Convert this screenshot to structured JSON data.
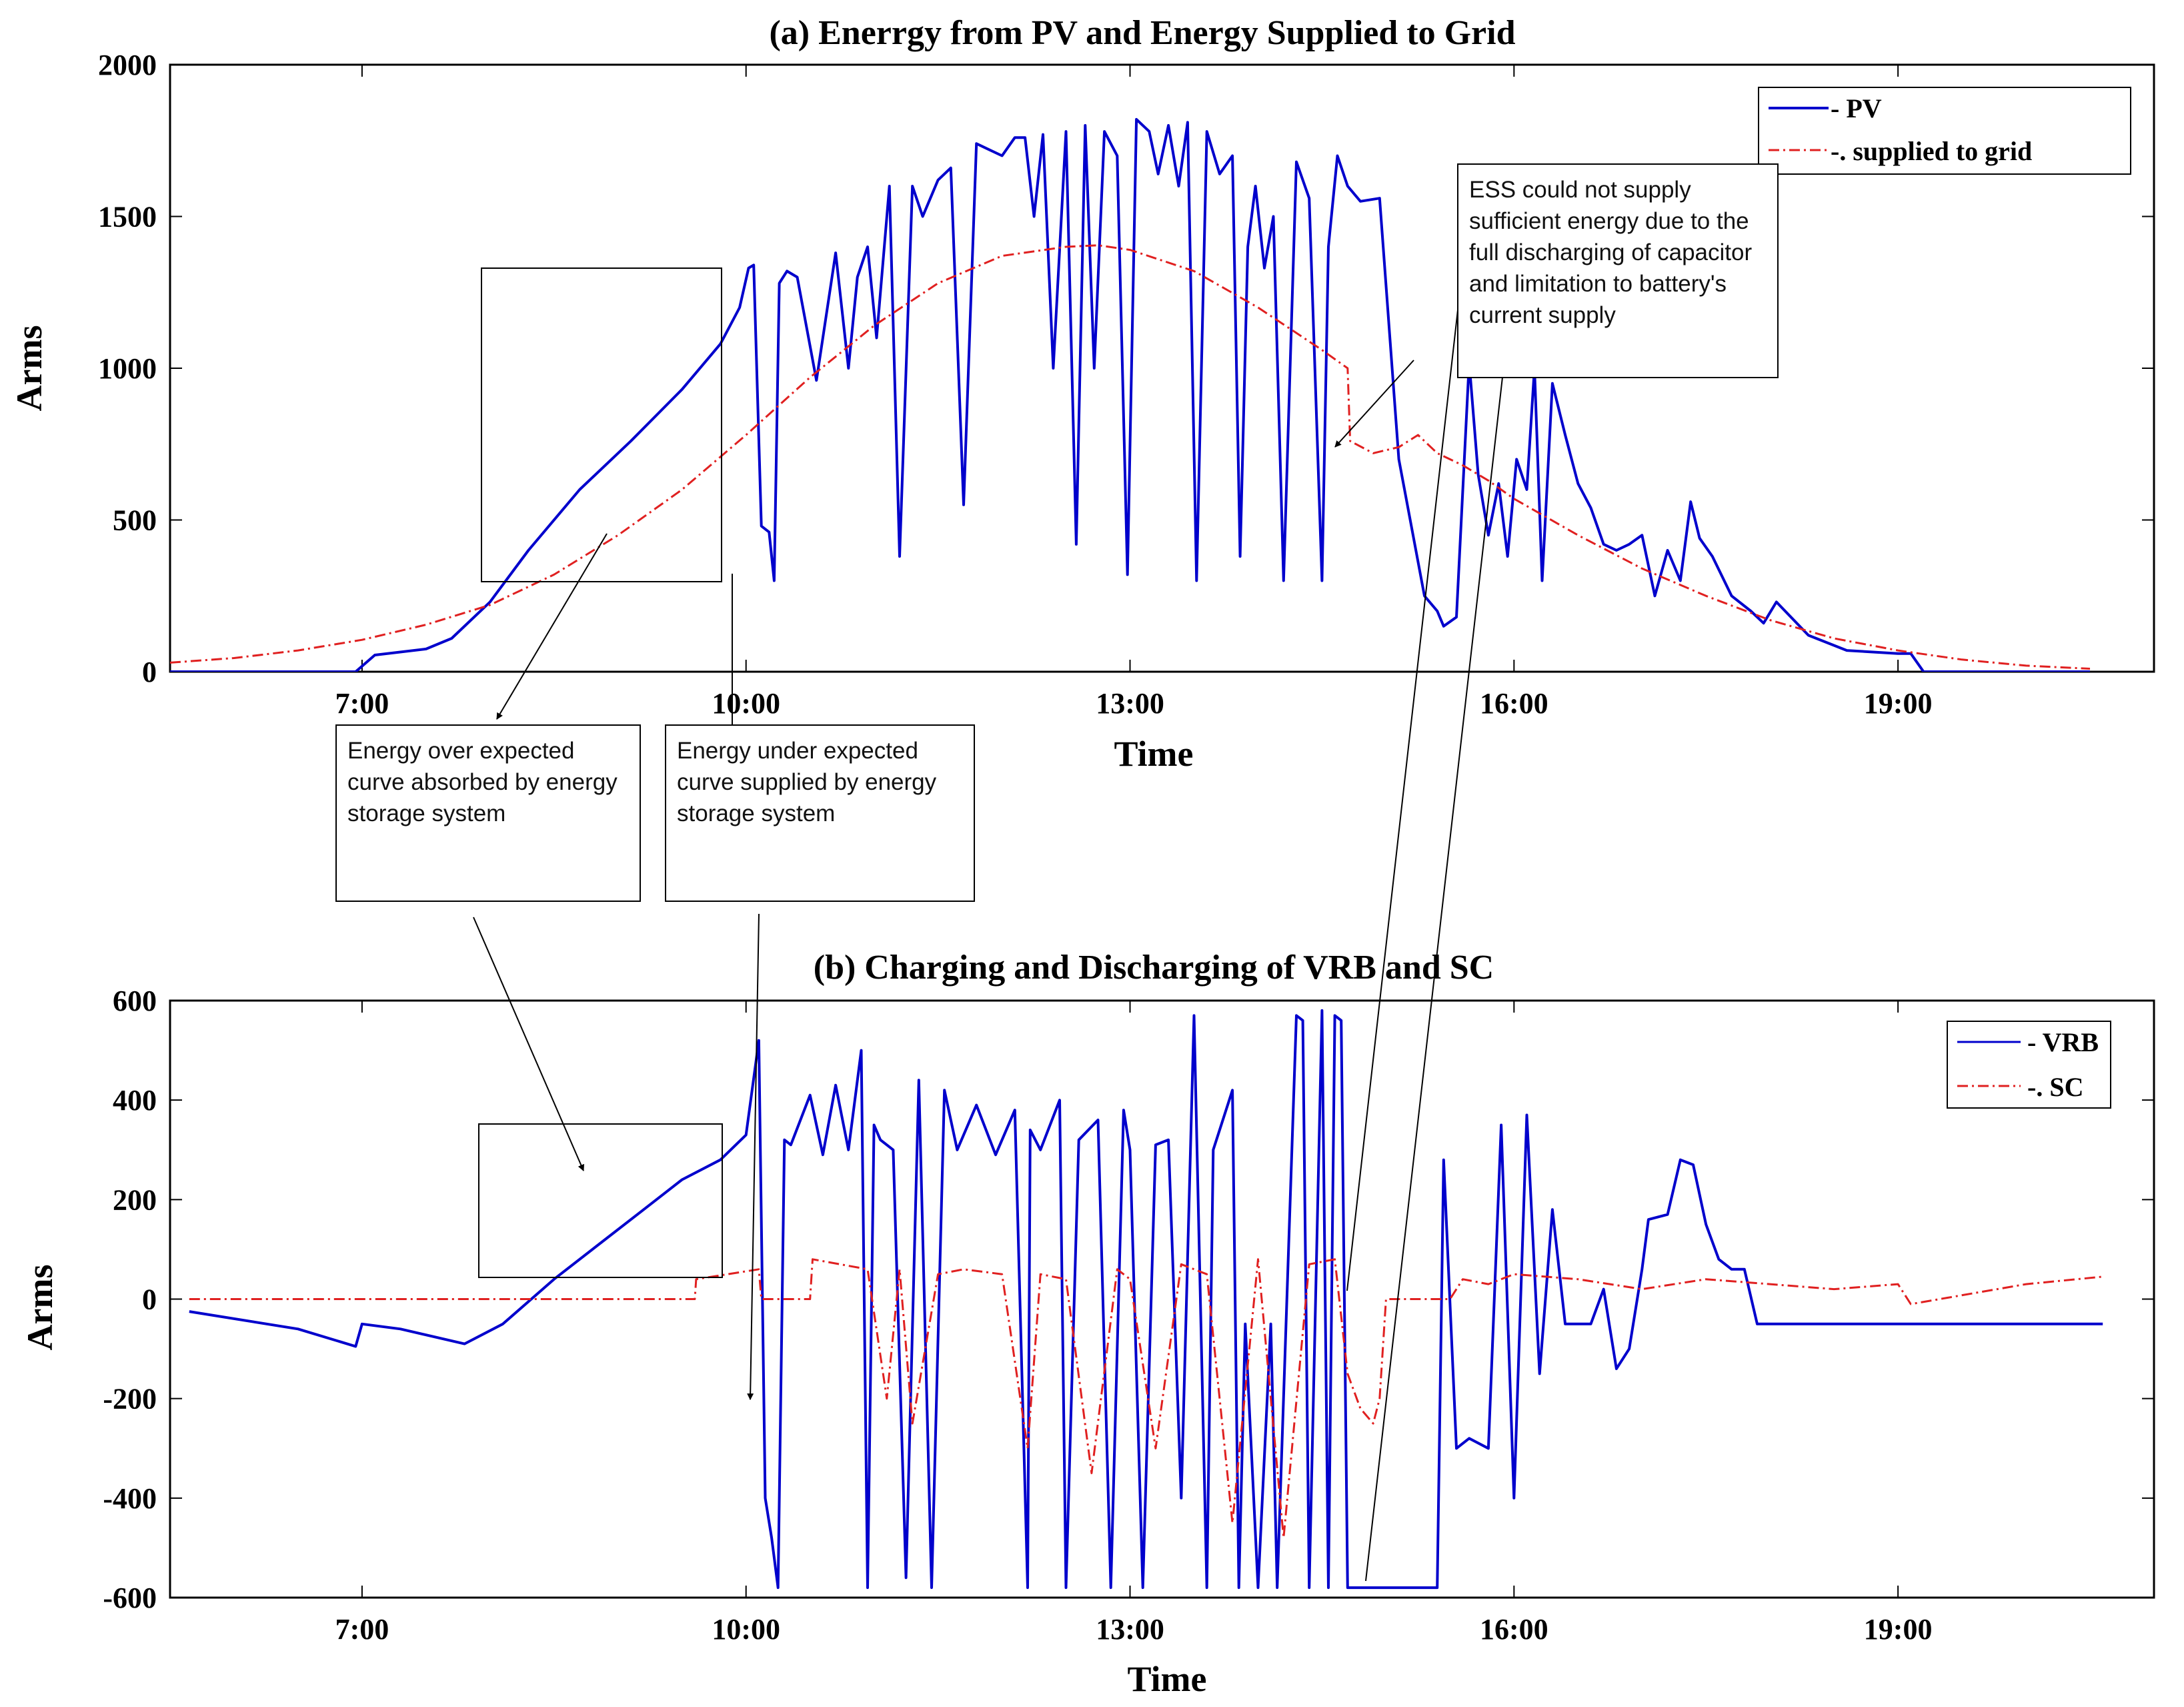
{
  "chart_data": [
    {
      "type": "line",
      "title": "(a) Enerrgy from PV and Energy Supplied to Grid",
      "xlabel": "Time",
      "ylabel": "Arms",
      "xlim": [
        5.5,
        21.0
      ],
      "ylim": [
        0,
        2000
      ],
      "x_ticks": [
        "7:00",
        "10:00",
        "13:00",
        "16:00",
        "19:00"
      ],
      "y_ticks": [
        "0",
        "500",
        "1000",
        "1500",
        "2000"
      ],
      "legend": "top-right",
      "series": [
        {
          "name": "- PV",
          "color": "#0000cc",
          "style": "solid",
          "x": [
            5.5,
            6.95,
            7.1,
            7.5,
            7.7,
            8.0,
            8.3,
            8.7,
            9.1,
            9.5,
            9.8,
            9.95,
            10.02,
            10.06,
            10.12,
            10.18,
            10.22,
            10.26,
            10.32,
            10.4,
            10.55,
            10.7,
            10.8,
            10.87,
            10.95,
            11.02,
            11.12,
            11.2,
            11.3,
            11.38,
            11.5,
            11.6,
            11.7,
            11.8,
            11.9,
            12.0,
            12.1,
            12.18,
            12.25,
            12.32,
            12.4,
            12.5,
            12.58,
            12.65,
            12.72,
            12.8,
            12.9,
            12.98,
            13.05,
            13.15,
            13.22,
            13.3,
            13.38,
            13.45,
            13.52,
            13.6,
            13.7,
            13.8,
            13.86,
            13.92,
            13.98,
            14.05,
            14.12,
            14.2,
            14.3,
            14.4,
            14.5,
            14.55,
            14.62,
            14.7,
            14.8,
            14.95,
            15.1,
            15.3,
            15.4,
            15.45,
            15.55,
            15.65,
            15.72,
            15.8,
            15.88,
            15.95,
            16.02,
            16.1,
            16.16,
            16.22,
            16.3,
            16.4,
            16.5,
            16.6,
            16.7,
            16.8,
            16.9,
            17.0,
            17.1,
            17.2,
            17.3,
            17.38,
            17.45,
            17.55,
            17.7,
            17.85,
            17.95,
            18.05,
            18.3,
            18.6,
            19.0,
            19.1,
            19.2,
            20.5
          ],
          "y": [
            0,
            0,
            55,
            75,
            110,
            230,
            400,
            600,
            760,
            930,
            1080,
            1200,
            1330,
            1340,
            480,
            460,
            300,
            1280,
            1320,
            1300,
            960,
            1380,
            1000,
            1300,
            1400,
            1100,
            1600,
            380,
            1600,
            1500,
            1620,
            1660,
            550,
            1740,
            1720,
            1700,
            1760,
            1760,
            1500,
            1770,
            1000,
            1780,
            420,
            1800,
            1000,
            1780,
            1700,
            320,
            1820,
            1780,
            1640,
            1800,
            1600,
            1810,
            300,
            1780,
            1640,
            1700,
            380,
            1400,
            1600,
            1330,
            1500,
            300,
            1680,
            1560,
            300,
            1400,
            1700,
            1600,
            1550,
            1560,
            700,
            250,
            200,
            150,
            180,
            1020,
            650,
            450,
            620,
            380,
            700,
            600,
            1000,
            300,
            950,
            780,
            620,
            540,
            420,
            400,
            420,
            450,
            250,
            400,
            300,
            560,
            440,
            380,
            250,
            200,
            160,
            230,
            120,
            70,
            60,
            60,
            0,
            0
          ]
        },
        {
          "name": "-. supplied to grid",
          "color": "#e02020",
          "style": "dashdot",
          "x": [
            5.5,
            6.0,
            6.5,
            7.0,
            7.5,
            8.0,
            8.5,
            9.0,
            9.5,
            10.0,
            10.5,
            11.0,
            11.5,
            12.0,
            12.5,
            12.75,
            13.0,
            13.5,
            14.0,
            14.5,
            14.7,
            14.72,
            14.9,
            15.1,
            15.25,
            15.4,
            15.6,
            15.8,
            16.0,
            16.5,
            17.0,
            17.5,
            18.0,
            18.5,
            19.0,
            19.5,
            20.0,
            20.5
          ],
          "y": [
            30,
            45,
            70,
            105,
            155,
            220,
            320,
            450,
            600,
            780,
            970,
            1140,
            1280,
            1370,
            1400,
            1405,
            1390,
            1320,
            1200,
            1060,
            1000,
            760,
            720,
            740,
            780,
            720,
            680,
            630,
            570,
            450,
            340,
            250,
            170,
            110,
            70,
            40,
            20,
            10
          ]
        }
      ],
      "annotations": [
        "Energy over expected curve absorbed by energy storage system",
        "Energy under expected curve supplied by energy storage system",
        "ESS could not supply sufficient energy due to the full discharging of capacitor and limitation to battery's current supply"
      ]
    },
    {
      "type": "line",
      "title": "(b) Charging and Discharging of VRB and SC",
      "xlabel": "Time",
      "ylabel": "Arms",
      "xlim": [
        5.5,
        21.0
      ],
      "ylim": [
        -600,
        600
      ],
      "x_ticks": [
        "7:00",
        "10:00",
        "13:00",
        "16:00",
        "19:00"
      ],
      "y_ticks": [
        "-600",
        "-400",
        "-200",
        "0",
        "200",
        "400",
        "600"
      ],
      "legend": "top-right",
      "series": [
        {
          "name": "- VRB",
          "color": "#0000cc",
          "style": "solid",
          "x": [
            5.65,
            6.5,
            6.95,
            7.0,
            7.3,
            7.8,
            8.1,
            8.5,
            8.9,
            9.2,
            9.5,
            9.8,
            10.0,
            10.1,
            10.15,
            10.2,
            10.25,
            10.3,
            10.35,
            10.5,
            10.6,
            10.7,
            10.8,
            10.9,
            10.95,
            11.0,
            11.05,
            11.15,
            11.25,
            11.35,
            11.45,
            11.55,
            11.65,
            11.8,
            11.95,
            12.1,
            12.2,
            12.22,
            12.3,
            12.45,
            12.5,
            12.6,
            12.75,
            12.85,
            12.95,
            13.0,
            13.1,
            13.2,
            13.3,
            13.4,
            13.5,
            13.6,
            13.65,
            13.8,
            13.85,
            13.9,
            14.0,
            14.1,
            14.15,
            14.3,
            14.35,
            14.4,
            14.5,
            14.55,
            14.6,
            14.65,
            14.7,
            15.0,
            15.3,
            15.4,
            15.45,
            15.55,
            15.65,
            15.8,
            15.9,
            16.0,
            16.1,
            16.2,
            16.3,
            16.4,
            16.5,
            16.6,
            16.7,
            16.8,
            16.9,
            17.0,
            17.05,
            17.2,
            17.3,
            17.4,
            17.5,
            17.6,
            17.7,
            17.8,
            17.9,
            18.0,
            18.1,
            18.4,
            19.0,
            20.0,
            20.6
          ],
          "y": [
            -25,
            -60,
            -95,
            -50,
            -60,
            -90,
            -50,
            40,
            120,
            180,
            240,
            280,
            330,
            520,
            -400,
            -480,
            -580,
            320,
            310,
            410,
            290,
            430,
            300,
            500,
            -580,
            350,
            320,
            300,
            -560,
            440,
            -580,
            420,
            300,
            390,
            290,
            380,
            -580,
            340,
            300,
            400,
            -580,
            320,
            360,
            -580,
            380,
            300,
            -580,
            310,
            320,
            -400,
            570,
            -580,
            300,
            420,
            -580,
            -50,
            -580,
            -50,
            -580,
            570,
            560,
            -580,
            580,
            -580,
            570,
            560,
            -580,
            -580,
            -580,
            -580,
            280,
            -300,
            -280,
            -300,
            350,
            -400,
            370,
            -150,
            180,
            -50,
            -50,
            -50,
            20,
            -140,
            -100,
            60,
            160,
            170,
            280,
            270,
            150,
            80,
            60,
            60,
            -50,
            -50,
            -50,
            -50,
            -50,
            -50,
            -50
          ]
        },
        {
          "name": "-. SC",
          "color": "#e02020",
          "style": "dashdot",
          "x": [
            5.65,
            9.6,
            9.61,
            10.1,
            10.12,
            10.5,
            10.52,
            10.95,
            11.1,
            11.2,
            11.3,
            11.5,
            11.7,
            12.0,
            12.2,
            12.3,
            12.5,
            12.7,
            12.9,
            13.0,
            13.2,
            13.4,
            13.6,
            13.8,
            14.0,
            14.2,
            14.4,
            14.6,
            14.7,
            14.8,
            14.9,
            14.95,
            15.0,
            15.5,
            15.6,
            15.8,
            16.0,
            16.5,
            17.0,
            17.5,
            18.0,
            18.5,
            19.0,
            19.1,
            20.0,
            20.6
          ],
          "y": [
            0,
            0,
            40,
            60,
            0,
            0,
            80,
            60,
            -200,
            60,
            -250,
            50,
            60,
            50,
            -300,
            50,
            40,
            -350,
            60,
            40,
            -300,
            70,
            50,
            -450,
            80,
            -480,
            70,
            80,
            -150,
            -220,
            -250,
            -200,
            0,
            0,
            40,
            30,
            50,
            40,
            20,
            40,
            30,
            20,
            30,
            -10,
            30,
            45
          ]
        }
      ]
    }
  ],
  "legends": {
    "top": [
      "- PV",
      "-. supplied to grid"
    ],
    "bottom": [
      "- VRB",
      "-. SC"
    ]
  }
}
